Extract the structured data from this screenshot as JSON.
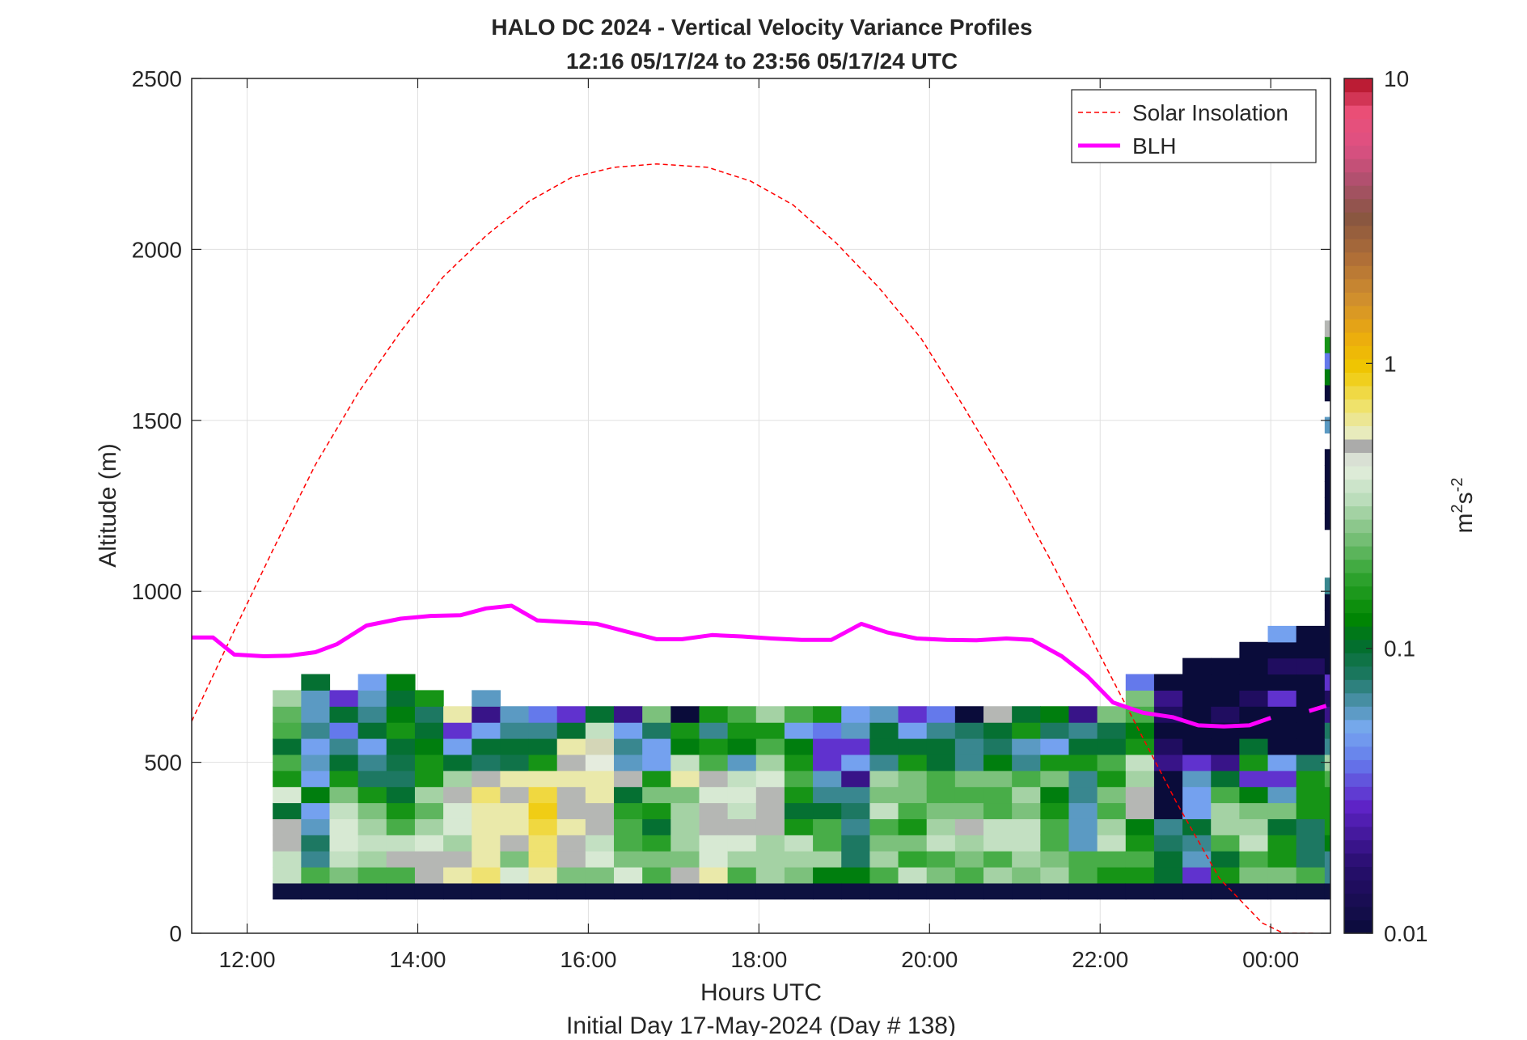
{
  "chart_data": {
    "type": "heatmap",
    "title": "HALO DC 2024 - Vertical Velocity Variance Profiles",
    "subtitle": "12:16 05/17/24 to 23:56 05/17/24  UTC",
    "xlabel": "Hours UTC",
    "xlabel2": "Initial Day 17-May-2024 (Day # 138)",
    "ylabel": "Altitude (m)",
    "xlim": [
      11.35,
      24.7
    ],
    "ylim": [
      0,
      2500
    ],
    "x_tick_values": [
      12,
      14,
      16,
      18,
      20,
      22,
      24
    ],
    "x_tick_labels": [
      "12:00",
      "14:00",
      "16:00",
      "18:00",
      "20:00",
      "22:00",
      "00:00"
    ],
    "y_tick_values": [
      0,
      500,
      1000,
      1500,
      2000,
      2500
    ],
    "y_tick_labels": [
      "0",
      "500",
      "1000",
      "1500",
      "2000",
      "2500"
    ],
    "grid": true,
    "legend_position": "top-right",
    "colorbar": {
      "scale": "log",
      "label_base": "m",
      "label_sup1": "2",
      "label_mid": "s",
      "label_sup2": "-2",
      "range": [
        0.01,
        10
      ],
      "tick_values": [
        0.01,
        0.1,
        1,
        10
      ],
      "tick_labels": [
        "0.01",
        "0.1",
        "1",
        "10"
      ]
    },
    "series": [
      {
        "name": "Solar Insolation",
        "style": "dashed",
        "color": "#ff0000",
        "x": [
          11.35,
          11.8,
          12.3,
          12.8,
          13.3,
          13.8,
          14.3,
          14.8,
          15.3,
          15.8,
          16.3,
          16.8,
          17.1,
          17.4,
          17.9,
          18.4,
          18.9,
          19.4,
          19.9,
          20.4,
          20.9,
          21.4,
          21.9,
          22.4,
          22.9,
          23.4,
          23.9,
          24.15,
          24.5
        ],
        "y": [
          620,
          860,
          1120,
          1370,
          1580,
          1760,
          1920,
          2040,
          2140,
          2210,
          2240,
          2250,
          2245,
          2240,
          2200,
          2130,
          2020,
          1890,
          1740,
          1540,
          1330,
          1100,
          860,
          620,
          380,
          160,
          30,
          0,
          0
        ]
      },
      {
        "name": "BLH",
        "style": "solid",
        "color": "#ff00ff",
        "x": [
          11.35,
          11.6,
          11.85,
          12.2,
          12.5,
          12.8,
          13.05,
          13.4,
          13.8,
          14.15,
          14.5,
          14.8,
          15.1,
          15.4,
          15.75,
          16.1,
          16.45,
          16.8,
          17.1,
          17.45,
          17.8,
          18.15,
          18.5,
          18.85,
          19.2,
          19.5,
          19.85,
          20.2,
          20.55,
          20.9,
          21.2,
          21.55,
          21.85,
          22.15,
          22.5,
          22.85,
          23.15,
          23.45,
          23.75,
          24.0
        ],
        "y": [
          865,
          865,
          815,
          810,
          812,
          822,
          845,
          900,
          920,
          928,
          930,
          950,
          958,
          915,
          910,
          905,
          882,
          860,
          860,
          872,
          868,
          862,
          858,
          858,
          905,
          880,
          862,
          858,
          857,
          862,
          858,
          810,
          752,
          675,
          645,
          632,
          608,
          605,
          608,
          630
        ],
        "tail_x": [
          24.45,
          24.65
        ],
        "tail_y": [
          650,
          665
        ]
      }
    ],
    "heatmap": {
      "x_start": 12.3,
      "x_step": 0.3333,
      "y_start": 100,
      "y_step": 47,
      "scale": "log",
      "columns": [
        [
          0.01,
          0.35,
          0.35,
          0.5,
          0.5,
          0.1,
          0.4,
          0.15,
          0.2,
          0.1,
          0.2,
          0.22,
          0.3
        ],
        [
          0.01,
          0.2,
          0.07,
          0.08,
          0.06,
          0.05,
          0.12,
          0.05,
          0.06,
          0.05,
          0.07,
          0.06,
          0.06,
          0.1
        ],
        [
          0.01,
          0.25,
          0.35,
          0.4,
          0.4,
          0.35,
          0.25,
          0.15,
          0.1,
          0.07,
          0.04,
          0.1,
          0.03
        ],
        [
          0.01,
          0.2,
          0.3,
          0.35,
          0.3,
          0.25,
          0.15,
          0.08,
          0.07,
          0.05,
          0.1,
          0.07,
          0.06,
          0.05
        ],
        [
          0.01,
          0.2,
          0.5,
          0.35,
          0.2,
          0.15,
          0.1,
          0.08,
          0.09,
          0.1,
          0.15,
          0.12,
          0.1,
          0.12
        ],
        [
          0.01,
          0.5,
          0.5,
          0.4,
          0.3,
          0.22,
          0.3,
          0.15,
          0.15,
          0.12,
          0.1,
          0.08,
          0.15
        ],
        [
          0.01,
          0.6,
          0.5,
          0.3,
          0.4,
          0.4,
          0.5,
          0.3,
          0.1,
          0.05,
          0.03,
          0.6
        ],
        [
          0.01,
          0.7,
          0.6,
          0.6,
          0.6,
          0.6,
          0.7,
          0.5,
          0.08,
          0.1,
          0.05,
          0.02,
          0.06
        ],
        [
          0.01,
          0.4,
          0.25,
          0.5,
          0.6,
          0.6,
          0.5,
          0.6,
          0.09,
          0.1,
          0.07,
          0.06
        ],
        [
          0.01,
          0.6,
          0.7,
          0.7,
          0.8,
          0.9,
          0.8,
          0.6,
          0.15,
          0.1,
          0.07,
          0.04
        ],
        [
          0.01,
          0.25,
          0.5,
          0.5,
          0.6,
          0.5,
          0.5,
          0.6,
          0.5,
          0.6,
          0.1,
          0.03
        ],
        [
          0.01,
          0.25,
          0.4,
          0.35,
          0.5,
          0.5,
          0.6,
          0.6,
          0.45,
          0.55,
          0.35,
          0.1
        ],
        [
          0.01,
          0.4,
          0.25,
          0.2,
          0.2,
          0.17,
          0.1,
          0.5,
          0.06,
          0.07,
          0.05,
          0.02
        ],
        [
          0.01,
          0.2,
          0.25,
          0.17,
          0.1,
          0.15,
          0.25,
          0.15,
          0.05,
          0.05,
          0.08,
          0.25
        ],
        [
          0.01,
          0.5,
          0.25,
          0.3,
          0.3,
          0.3,
          0.25,
          0.6,
          0.35,
          0.12,
          0.15,
          0.01
        ],
        [
          0.01,
          0.6,
          0.4,
          0.4,
          0.5,
          0.5,
          0.4,
          0.5,
          0.2,
          0.15,
          0.07,
          0.15
        ],
        [
          0.01,
          0.2,
          0.3,
          0.4,
          0.5,
          0.35,
          0.4,
          0.35,
          0.06,
          0.12,
          0.15,
          0.2
        ],
        [
          0.01,
          0.3,
          0.3,
          0.3,
          0.5,
          0.5,
          0.5,
          0.4,
          0.3,
          0.2,
          0.15,
          0.3
        ],
        [
          0.01,
          0.25,
          0.3,
          0.35,
          0.15,
          0.1,
          0.15,
          0.2,
          0.15,
          0.12,
          0.05,
          0.2
        ],
        [
          0.01,
          0.12,
          0.3,
          0.2,
          0.2,
          0.1,
          0.07,
          0.06,
          0.03,
          0.03,
          0.04,
          0.15
        ],
        [
          0.01,
          0.12,
          0.08,
          0.08,
          0.07,
          0.08,
          0.07,
          0.02,
          0.05,
          0.03,
          0.06,
          0.05
        ],
        [
          0.01,
          0.2,
          0.3,
          0.25,
          0.2,
          0.35,
          0.25,
          0.3,
          0.07,
          0.1,
          0.1,
          0.06
        ],
        [
          0.01,
          0.35,
          0.18,
          0.25,
          0.15,
          0.2,
          0.25,
          0.25,
          0.15,
          0.1,
          0.05,
          0.03
        ],
        [
          0.01,
          0.25,
          0.2,
          0.35,
          0.3,
          0.25,
          0.2,
          0.2,
          0.1,
          0.1,
          0.07,
          0.04
        ],
        [
          0.01,
          0.2,
          0.25,
          0.3,
          0.5,
          0.25,
          0.2,
          0.25,
          0.07,
          0.07,
          0.08,
          0.01
        ],
        [
          0.01,
          0.3,
          0.2,
          0.35,
          0.35,
          0.2,
          0.2,
          0.25,
          0.12,
          0.08,
          0.1,
          0.5
        ],
        [
          0.01,
          0.25,
          0.3,
          0.35,
          0.35,
          0.25,
          0.3,
          0.2,
          0.07,
          0.06,
          0.15,
          0.1
        ],
        [
          0.01,
          0.3,
          0.25,
          0.2,
          0.2,
          0.15,
          0.12,
          0.25,
          0.15,
          0.05,
          0.08,
          0.12
        ],
        [
          0.01,
          0.2,
          0.2,
          0.06,
          0.06,
          0.06,
          0.07,
          0.07,
          0.15,
          0.1,
          0.07,
          0.02
        ],
        [
          0.01,
          0.15,
          0.2,
          0.35,
          0.3,
          0.2,
          0.25,
          0.15,
          0.2,
          0.1,
          0.09,
          0.25
        ],
        [
          0.01,
          0.15,
          0.2,
          0.15,
          0.12,
          0.5,
          0.5,
          0.3,
          0.35,
          0.15,
          0.12,
          0.2,
          0.25,
          0.04
        ],
        [
          0.01,
          0.1,
          0.1,
          0.08,
          0.07,
          0.01,
          0.01,
          0.01,
          0.02,
          0.015,
          0.01,
          0.015,
          0.02,
          0.01
        ],
        [
          0.01,
          0.03,
          0.06,
          0.07,
          0.1,
          0.05,
          0.05,
          0.06,
          0.03,
          0.01,
          0.01,
          0.01,
          0.01,
          0.01,
          0.01
        ],
        [
          0.01,
          0.15,
          0.1,
          0.2,
          0.3,
          0.3,
          0.2,
          0.1,
          0.02,
          0.01,
          0.01,
          0.015,
          0.01,
          0.01,
          0.01
        ],
        [
          0.01,
          0.25,
          0.2,
          0.35,
          0.3,
          0.25,
          0.12,
          0.03,
          0.15,
          0.1,
          0.01,
          0.01,
          0.015,
          0.01,
          0.01,
          0.01
        ],
        [
          0.01,
          0.25,
          0.15,
          0.15,
          0.1,
          0.25,
          0.06,
          0.03,
          0.05,
          0.01,
          0.01,
          0.01,
          0.03,
          0.01,
          0.015,
          0.01,
          0.05
        ],
        [
          0.01,
          0.2,
          0.08,
          0.08,
          0.08,
          0.15,
          0.15,
          0.15,
          0.08,
          0.01,
          0.01,
          0.01,
          0.01,
          0.01,
          0.015,
          0.01,
          0.01
        ],
        [
          0.01,
          0.07,
          0.07,
          0.12,
          0.15,
          0.15,
          0.15,
          0.2,
          0.3,
          0.07,
          0.08,
          0.02,
          0.015,
          0.03,
          0.01,
          0.01,
          0.01,
          0.01,
          0.01,
          0.07,
          {
            "gap": 3
          },
          0.01,
          0.01,
          0.01,
          0.01,
          0.01,
          {
            "gap": 1
          },
          0.06,
          {
            "gap": 1
          },
          0.01,
          0.12,
          0.04,
          0.15,
          0.5
        ]
      ]
    }
  },
  "legend": {
    "entries": [
      "Solar Insolation",
      "BLH"
    ]
  },
  "colors": {
    "solar": "#ff0000",
    "blh": "#ff00ff",
    "floor_band": "#0d1140",
    "grid": "#e0e0e0",
    "axes": "#262626"
  }
}
